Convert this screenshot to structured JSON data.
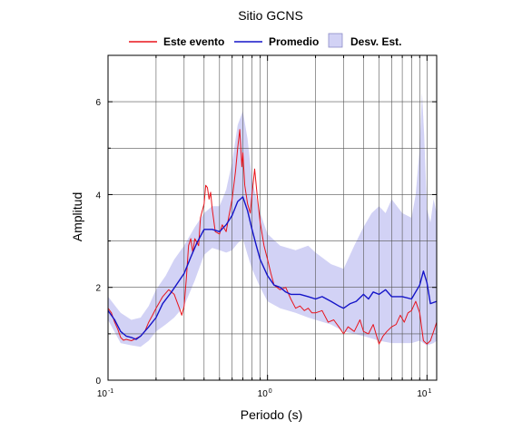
{
  "chart_data": {
    "type": "line",
    "title": "Sitio GCNS",
    "xlabel": "Periodo (s)",
    "ylabel": "Amplitud",
    "x_scale": "log",
    "xlim": [
      0.1,
      11.5
    ],
    "ylim": [
      0,
      7
    ],
    "grid": true,
    "legend_position": "top",
    "y_ticks": [
      {
        "value": 0,
        "label": "0"
      },
      {
        "value": 2,
        "label": "2"
      },
      {
        "value": 4,
        "label": "4"
      },
      {
        "value": 6,
        "label": "6"
      }
    ],
    "x_ticks": [
      {
        "value": 0.1,
        "base": "10",
        "exp": "-1"
      },
      {
        "value": 1,
        "base": "10",
        "exp": "0"
      },
      {
        "value": 10,
        "base": "10",
        "exp": "1"
      }
    ],
    "series": [
      {
        "name": "Este evento",
        "color": "#e8141c",
        "points": [
          [
            0.1,
            1.55
          ],
          [
            0.105,
            1.45
          ],
          [
            0.11,
            1.25
          ],
          [
            0.115,
            1.1
          ],
          [
            0.12,
            0.92
          ],
          [
            0.125,
            0.86
          ],
          [
            0.13,
            0.88
          ],
          [
            0.14,
            0.85
          ],
          [
            0.15,
            0.9
          ],
          [
            0.16,
            0.95
          ],
          [
            0.17,
            1.05
          ],
          [
            0.18,
            1.25
          ],
          [
            0.19,
            1.4
          ],
          [
            0.2,
            1.55
          ],
          [
            0.22,
            1.8
          ],
          [
            0.24,
            1.95
          ],
          [
            0.26,
            1.85
          ],
          [
            0.28,
            1.55
          ],
          [
            0.29,
            1.4
          ],
          [
            0.3,
            1.6
          ],
          [
            0.31,
            2.2
          ],
          [
            0.32,
            2.9
          ],
          [
            0.33,
            3.05
          ],
          [
            0.34,
            2.75
          ],
          [
            0.35,
            3.05
          ],
          [
            0.37,
            2.9
          ],
          [
            0.38,
            3.5
          ],
          [
            0.4,
            3.8
          ],
          [
            0.41,
            4.2
          ],
          [
            0.42,
            4.15
          ],
          [
            0.43,
            3.9
          ],
          [
            0.44,
            4.05
          ],
          [
            0.45,
            3.7
          ],
          [
            0.47,
            3.2
          ],
          [
            0.5,
            3.15
          ],
          [
            0.52,
            3.35
          ],
          [
            0.55,
            3.2
          ],
          [
            0.57,
            3.5
          ],
          [
            0.6,
            3.9
          ],
          [
            0.63,
            4.5
          ],
          [
            0.65,
            5.0
          ],
          [
            0.67,
            5.4
          ],
          [
            0.69,
            4.6
          ],
          [
            0.7,
            4.9
          ],
          [
            0.72,
            4.2
          ],
          [
            0.75,
            3.8
          ],
          [
            0.78,
            3.6
          ],
          [
            0.8,
            4.0
          ],
          [
            0.83,
            4.55
          ],
          [
            0.86,
            4.0
          ],
          [
            0.9,
            3.4
          ],
          [
            0.95,
            2.9
          ],
          [
            1.0,
            2.6
          ],
          [
            1.05,
            2.3
          ],
          [
            1.1,
            2.05
          ],
          [
            1.2,
            1.95
          ],
          [
            1.3,
            2.0
          ],
          [
            1.4,
            1.75
          ],
          [
            1.5,
            1.55
          ],
          [
            1.6,
            1.6
          ],
          [
            1.7,
            1.5
          ],
          [
            1.8,
            1.55
          ],
          [
            1.9,
            1.45
          ],
          [
            2.0,
            1.45
          ],
          [
            2.2,
            1.5
          ],
          [
            2.4,
            1.25
          ],
          [
            2.6,
            1.3
          ],
          [
            2.8,
            1.15
          ],
          [
            3.0,
            1.0
          ],
          [
            3.2,
            1.15
          ],
          [
            3.5,
            1.05
          ],
          [
            3.8,
            1.3
          ],
          [
            4.0,
            1.05
          ],
          [
            4.3,
            1.0
          ],
          [
            4.6,
            1.2
          ],
          [
            5.0,
            0.78
          ],
          [
            5.3,
            0.95
          ],
          [
            5.6,
            1.05
          ],
          [
            6.0,
            1.15
          ],
          [
            6.4,
            1.2
          ],
          [
            6.8,
            1.4
          ],
          [
            7.2,
            1.25
          ],
          [
            7.6,
            1.45
          ],
          [
            8.0,
            1.5
          ],
          [
            8.5,
            1.7
          ],
          [
            9.0,
            1.45
          ],
          [
            9.5,
            0.85
          ],
          [
            10.0,
            0.78
          ],
          [
            10.5,
            0.85
          ],
          [
            11.0,
            1.05
          ],
          [
            11.5,
            1.25
          ]
        ]
      },
      {
        "name": "Promedio",
        "color": "#1414c8",
        "points": [
          [
            0.1,
            1.5
          ],
          [
            0.11,
            1.3
          ],
          [
            0.12,
            1.05
          ],
          [
            0.13,
            0.95
          ],
          [
            0.14,
            0.92
          ],
          [
            0.15,
            0.88
          ],
          [
            0.16,
            0.95
          ],
          [
            0.18,
            1.15
          ],
          [
            0.2,
            1.35
          ],
          [
            0.22,
            1.65
          ],
          [
            0.25,
            1.9
          ],
          [
            0.28,
            2.15
          ],
          [
            0.3,
            2.3
          ],
          [
            0.33,
            2.65
          ],
          [
            0.36,
            2.95
          ],
          [
            0.4,
            3.25
          ],
          [
            0.45,
            3.25
          ],
          [
            0.5,
            3.2
          ],
          [
            0.55,
            3.35
          ],
          [
            0.6,
            3.55
          ],
          [
            0.65,
            3.85
          ],
          [
            0.7,
            3.95
          ],
          [
            0.75,
            3.65
          ],
          [
            0.8,
            3.25
          ],
          [
            0.85,
            2.9
          ],
          [
            0.9,
            2.6
          ],
          [
            1.0,
            2.25
          ],
          [
            1.1,
            2.05
          ],
          [
            1.2,
            2.0
          ],
          [
            1.3,
            1.9
          ],
          [
            1.4,
            1.85
          ],
          [
            1.6,
            1.85
          ],
          [
            1.8,
            1.8
          ],
          [
            2.0,
            1.75
          ],
          [
            2.2,
            1.8
          ],
          [
            2.5,
            1.7
          ],
          [
            2.8,
            1.6
          ],
          [
            3.0,
            1.55
          ],
          [
            3.3,
            1.65
          ],
          [
            3.6,
            1.7
          ],
          [
            4.0,
            1.85
          ],
          [
            4.3,
            1.75
          ],
          [
            4.6,
            1.9
          ],
          [
            5.0,
            1.85
          ],
          [
            5.5,
            1.95
          ],
          [
            6.0,
            1.8
          ],
          [
            7.0,
            1.8
          ],
          [
            8.0,
            1.75
          ],
          [
            9.0,
            2.05
          ],
          [
            9.5,
            2.35
          ],
          [
            10.0,
            2.1
          ],
          [
            10.5,
            1.65
          ],
          [
            11.5,
            1.7
          ]
        ]
      },
      {
        "name": "Desv. Est.",
        "color": "#d2d2f5",
        "upper": [
          [
            0.1,
            1.8
          ],
          [
            0.12,
            1.45
          ],
          [
            0.14,
            1.3
          ],
          [
            0.16,
            1.35
          ],
          [
            0.18,
            1.6
          ],
          [
            0.2,
            1.95
          ],
          [
            0.23,
            2.25
          ],
          [
            0.26,
            2.6
          ],
          [
            0.3,
            2.9
          ],
          [
            0.35,
            3.3
          ],
          [
            0.4,
            3.6
          ],
          [
            0.45,
            3.75
          ],
          [
            0.5,
            3.75
          ],
          [
            0.55,
            4.1
          ],
          [
            0.6,
            4.7
          ],
          [
            0.65,
            5.5
          ],
          [
            0.7,
            5.8
          ],
          [
            0.75,
            5.2
          ],
          [
            0.8,
            4.3
          ],
          [
            0.9,
            3.6
          ],
          [
            1.0,
            3.15
          ],
          [
            1.2,
            2.9
          ],
          [
            1.5,
            2.8
          ],
          [
            1.8,
            2.9
          ],
          [
            2.0,
            2.75
          ],
          [
            2.5,
            2.5
          ],
          [
            3.0,
            2.4
          ],
          [
            3.5,
            2.9
          ],
          [
            4.0,
            3.3
          ],
          [
            4.5,
            3.6
          ],
          [
            5.0,
            3.75
          ],
          [
            5.5,
            3.6
          ],
          [
            6.0,
            3.9
          ],
          [
            7.0,
            3.6
          ],
          [
            8.0,
            3.5
          ],
          [
            8.5,
            4.0
          ],
          [
            9.0,
            5.0
          ],
          [
            9.3,
            6.2
          ],
          [
            9.6,
            5.3
          ],
          [
            10.0,
            3.7
          ],
          [
            10.5,
            3.4
          ],
          [
            11.0,
            3.9
          ],
          [
            11.5,
            3.6
          ]
        ],
        "lower": [
          [
            0.1,
            1.3
          ],
          [
            0.12,
            0.8
          ],
          [
            0.14,
            0.75
          ],
          [
            0.16,
            0.72
          ],
          [
            0.18,
            0.85
          ],
          [
            0.2,
            1.05
          ],
          [
            0.23,
            1.2
          ],
          [
            0.26,
            1.35
          ],
          [
            0.3,
            1.6
          ],
          [
            0.35,
            2.15
          ],
          [
            0.4,
            2.7
          ],
          [
            0.45,
            2.85
          ],
          [
            0.5,
            2.8
          ],
          [
            0.55,
            2.75
          ],
          [
            0.6,
            2.8
          ],
          [
            0.65,
            2.95
          ],
          [
            0.7,
            3.05
          ],
          [
            0.75,
            2.7
          ],
          [
            0.8,
            2.4
          ],
          [
            0.9,
            2.0
          ],
          [
            1.0,
            1.7
          ],
          [
            1.2,
            1.55
          ],
          [
            1.5,
            1.45
          ],
          [
            1.8,
            1.35
          ],
          [
            2.0,
            1.3
          ],
          [
            2.5,
            1.2
          ],
          [
            3.0,
            1.05
          ],
          [
            3.5,
            1.0
          ],
          [
            4.0,
            0.95
          ],
          [
            4.5,
            0.9
          ],
          [
            5.0,
            0.85
          ],
          [
            6.0,
            0.8
          ],
          [
            7.0,
            0.8
          ],
          [
            8.0,
            0.8
          ],
          [
            9.0,
            0.85
          ],
          [
            10.0,
            0.75
          ],
          [
            11.0,
            0.8
          ],
          [
            11.5,
            0.85
          ]
        ]
      }
    ]
  }
}
